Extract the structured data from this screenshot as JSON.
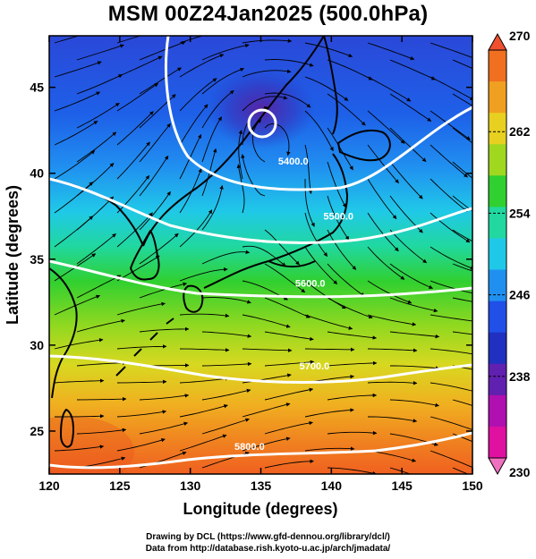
{
  "title": "MSM 00Z24Jan2025 (500.0hPa)",
  "credits": {
    "line1": "Drawing by DCL (https://www.gfd-dennou.org/library/dcl/)",
    "line2": "Data from http://database.rish.kyoto-u.ac.jp/arch/jmadata/"
  },
  "map": {
    "xlabel": "Longitude (degrees)",
    "ylabel": "Latitude  (degrees)",
    "lon_range": [
      120,
      150
    ],
    "lat_range": [
      22.5,
      48
    ],
    "lon_ticks": [
      "120",
      "125",
      "130",
      "135",
      "140",
      "145",
      "150"
    ],
    "lat_ticks": [
      "25",
      "30",
      "35",
      "40",
      "45"
    ],
    "fields": [
      "temperature (shaded)",
      "geopotential height (white contours)",
      "wind (streamlines)"
    ]
  },
  "contours": [
    {
      "label": "5400.0",
      "label_lon": 137.3,
      "label_lat": 40.5
    },
    {
      "label": "5500.0",
      "label_lon": 140.5,
      "label_lat": 37.3
    },
    {
      "label": "5600.0",
      "label_lon": 138.5,
      "label_lat": 33.4
    },
    {
      "label": "5700.0",
      "label_lon": 138.8,
      "label_lat": 28.6
    },
    {
      "label": "5800.0",
      "label_lon": 134.2,
      "label_lat": 23.9
    }
  ],
  "low_center": {
    "lon": 135.5,
    "lat": 43.3
  },
  "colorbar": {
    "min": 230,
    "max": 270,
    "labels": [
      "270",
      "262",
      "254",
      "246",
      "238",
      "230"
    ],
    "colors": [
      "#f07020",
      "#f0a020",
      "#e8d020",
      "#a0d820",
      "#30d030",
      "#20d8a0",
      "#20c8e8",
      "#2090f0",
      "#2050e8",
      "#2030c0",
      "#6020b0",
      "#b010b0",
      "#e010a0"
    ]
  }
}
